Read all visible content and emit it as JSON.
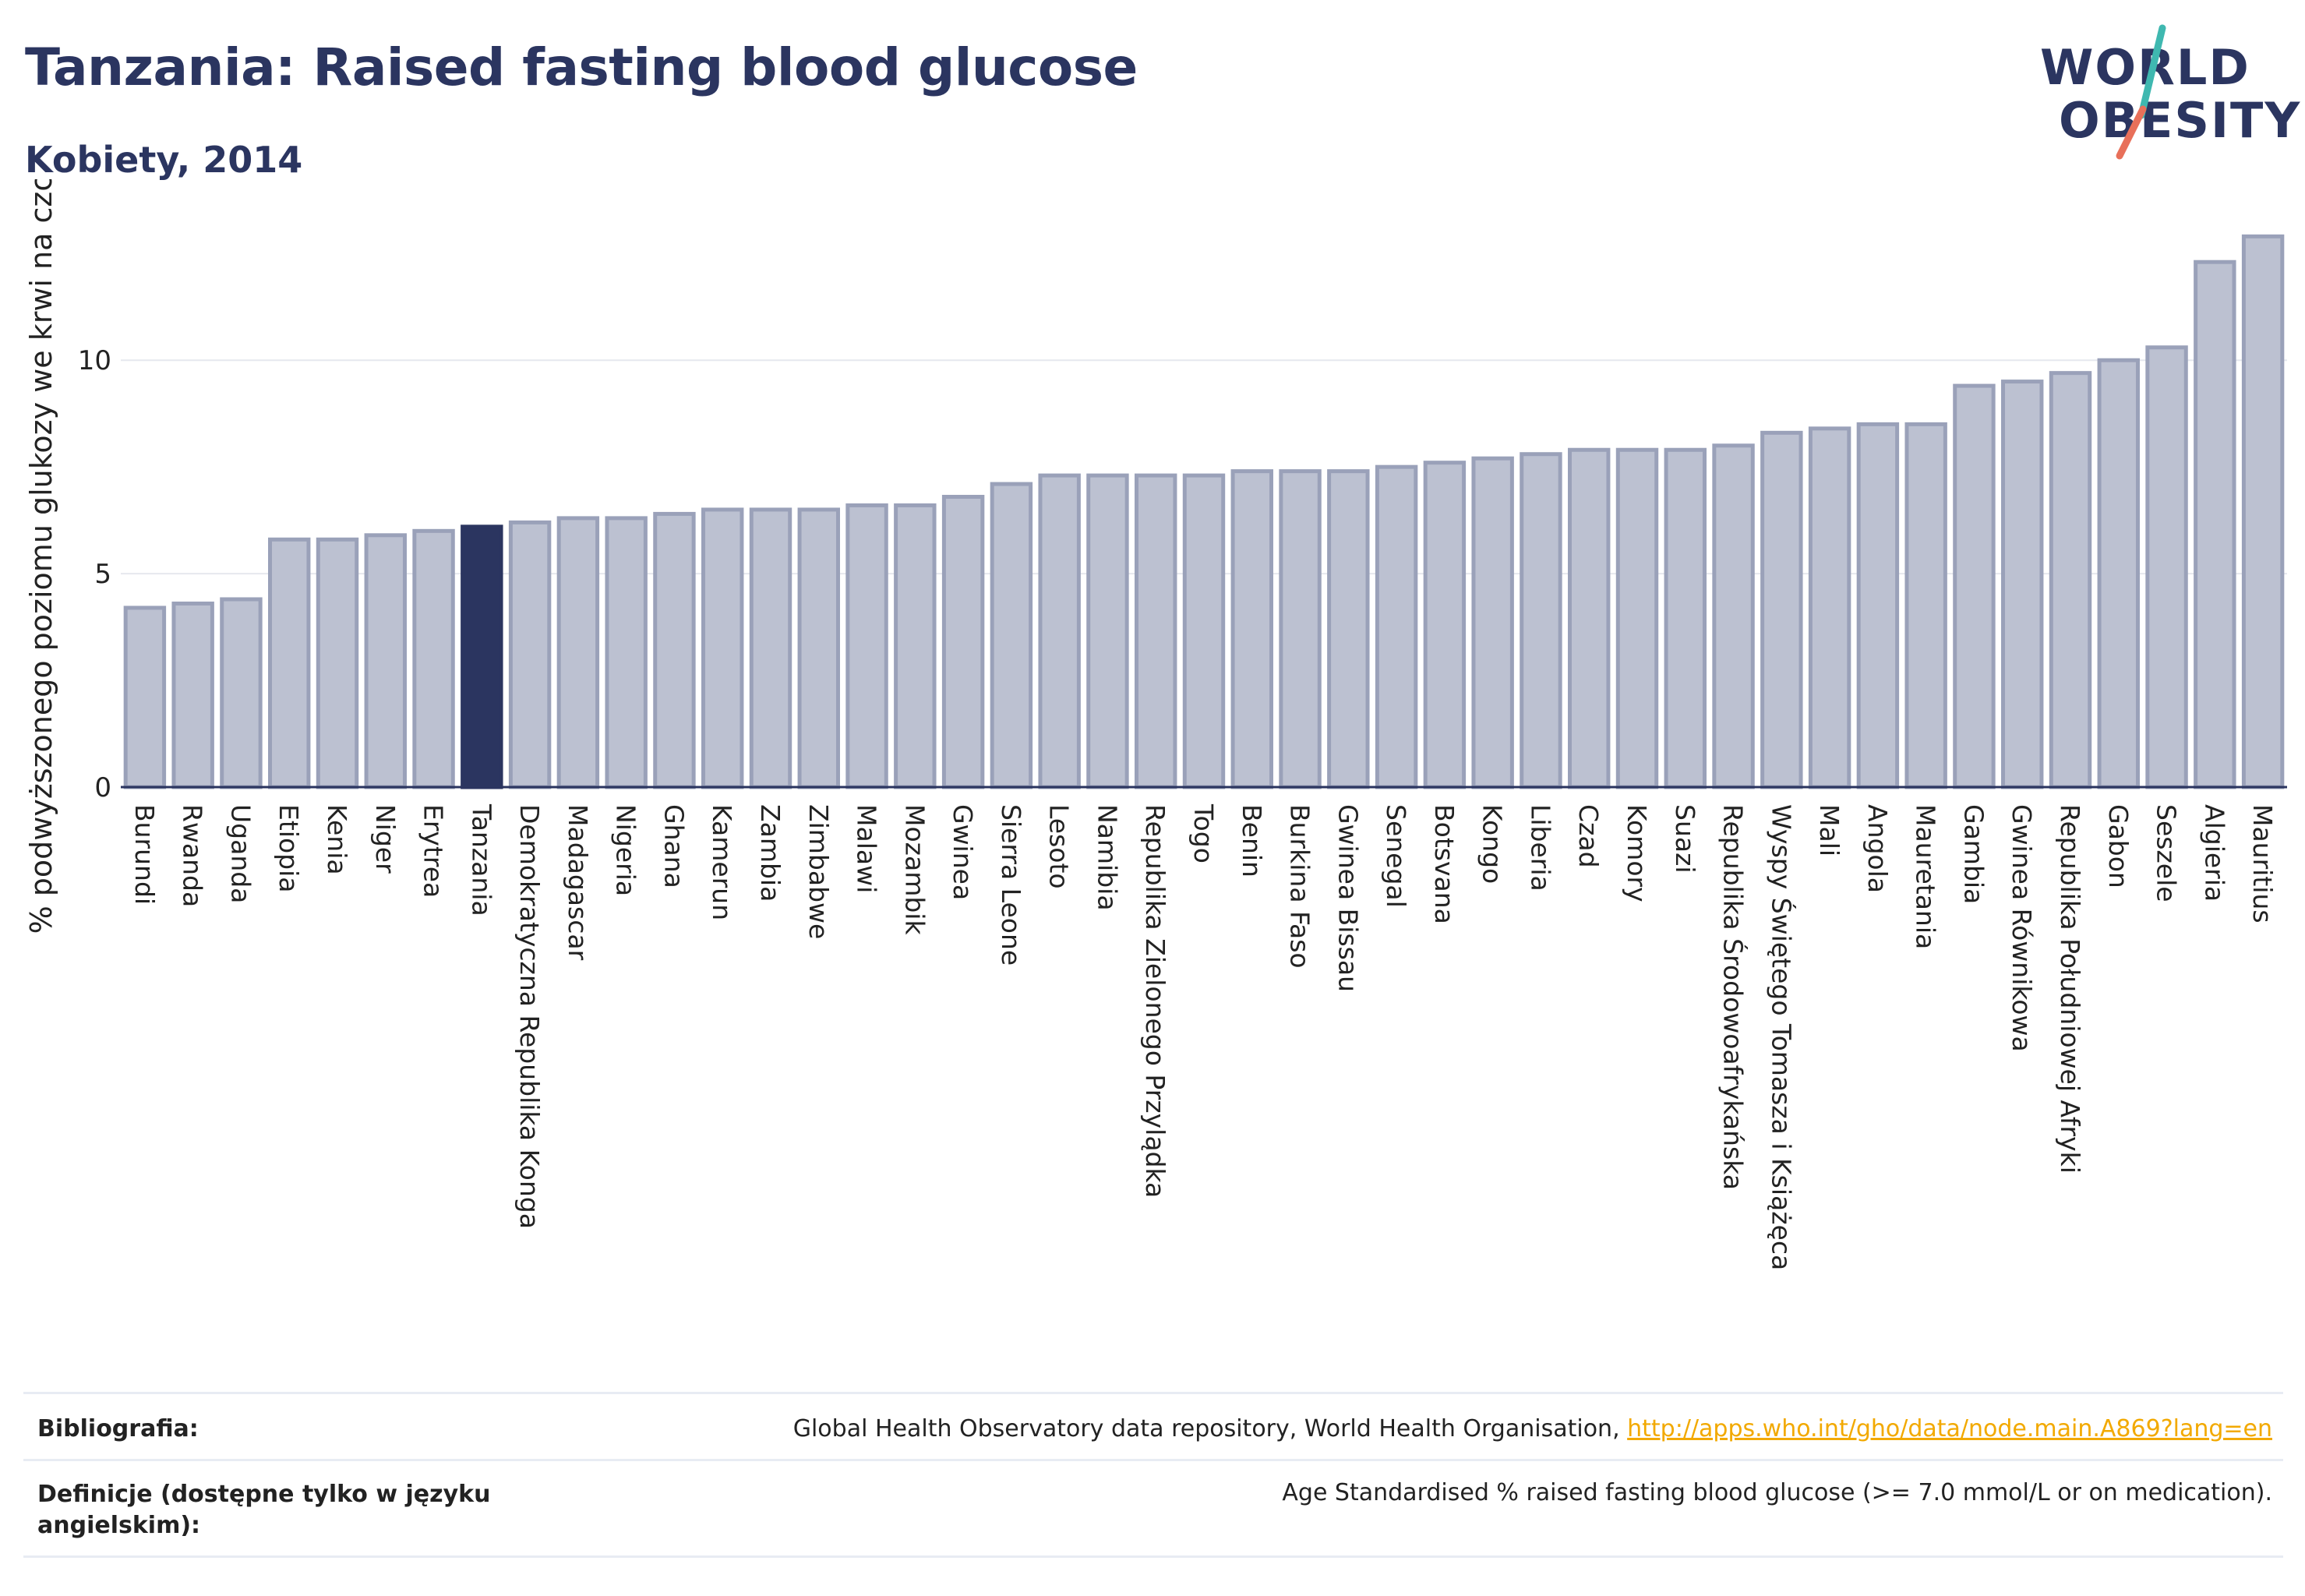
{
  "header": {
    "title": "Tanzania: Raised fasting blood glucose",
    "subtitle": "Kobiety, 2014"
  },
  "logo": {
    "line1": "WORLD",
    "line2": "OBESITY",
    "colors": {
      "navy": "#2b3560",
      "teal": "#3fb8b0",
      "coral": "#e8705a"
    }
  },
  "chart_data": {
    "type": "bar",
    "ylabel": "% podwyższonego poziomu glukozy we krwi na czczo",
    "ylim": [
      0,
      13.6
    ],
    "yticks": [
      0,
      5,
      10
    ],
    "grid": true,
    "highlight": "Tanzania",
    "colors": {
      "bar": "#bcc1d1",
      "bar_edge": "#9aa1b9",
      "highlight": "#2b3560"
    },
    "categories": [
      "Burundi",
      "Rwanda",
      "Uganda",
      "Etiopia",
      "Kenia",
      "Niger",
      "Erytrea",
      "Tanzania",
      "Demokratyczna Republika Konga",
      "Madagascar",
      "Nigeria",
      "Ghana",
      "Kamerun",
      "Zambia",
      "Zimbabwe",
      "Malawi",
      "Mozambik",
      "Gwinea",
      "Sierra Leone",
      "Lesoto",
      "Namibia",
      "Republika Zielonego Przylądka",
      "Togo",
      "Benin",
      "Burkina Faso",
      "Gwinea Bissau",
      "Senegal",
      "Botsvana",
      "Kongo",
      "Liberia",
      "Czad",
      "Komory",
      "Suazi",
      "Republika Środowoafrykańska",
      "Wyspy Świętego Tomasza i Książęca",
      "Mali",
      "Angola",
      "Mauretania",
      "Gambia",
      "Gwinea Równikowa",
      "Republika Południowej Afryki",
      "Gabon",
      "Seszele",
      "Algieria",
      "Mauritius"
    ],
    "values": [
      4.2,
      4.3,
      4.4,
      5.8,
      5.8,
      5.9,
      6.0,
      6.1,
      6.2,
      6.3,
      6.3,
      6.4,
      6.5,
      6.5,
      6.5,
      6.6,
      6.6,
      6.8,
      7.1,
      7.3,
      7.3,
      7.3,
      7.3,
      7.4,
      7.4,
      7.4,
      7.5,
      7.6,
      7.7,
      7.8,
      7.9,
      7.9,
      7.9,
      8.0,
      8.3,
      8.4,
      8.5,
      8.5,
      9.4,
      9.5,
      9.7,
      10.0,
      10.3,
      12.3,
      12.9
    ]
  },
  "footer": {
    "bibliography_label": "Bibliografia:",
    "bibliography_text": "Global Health Observatory data repository, World Health Organisation, ",
    "bibliography_link": "http://apps.who.int/gho/data/node.main.A869?lang=en",
    "definition_label": "Definicje (dostępne tylko w języku angielskim):",
    "definition_text": "Age Standardised % raised fasting blood glucose (>= 7.0 mmol/L or on medication)."
  }
}
